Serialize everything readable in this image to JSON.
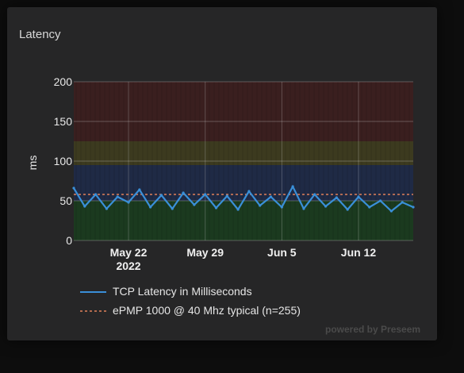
{
  "card": {
    "title": "Latency",
    "watermark_prefix": "powered by",
    "watermark": "Preseem"
  },
  "chart_data": {
    "type": "line",
    "title": "Latency",
    "xlabel": "",
    "ylabel": "ms",
    "ylim": [
      0,
      200
    ],
    "yticks": [
      0,
      50,
      100,
      150,
      200
    ],
    "xlim": [
      "2022-05-17",
      "2022-06-17"
    ],
    "xticks": [
      {
        "date": "2022-05-22",
        "label": "May 22",
        "sublabel": "2022"
      },
      {
        "date": "2022-05-29",
        "label": "May 29",
        "sublabel": ""
      },
      {
        "date": "2022-06-05",
        "label": "Jun 5",
        "sublabel": ""
      },
      {
        "date": "2022-06-12",
        "label": "Jun 12",
        "sublabel": ""
      }
    ],
    "grid": true,
    "legend_placement": "bottom",
    "bands": [
      {
        "from": 0,
        "to": 50,
        "color": "#1b3a1f"
      },
      {
        "from": 50,
        "to": 95,
        "color": "#1f2a45"
      },
      {
        "from": 95,
        "to": 125,
        "color": "#3c3a1f"
      },
      {
        "from": 125,
        "to": 200,
        "color": "#3a1f1f"
      }
    ],
    "series": [
      {
        "name": "TCP Latency in Milliseconds",
        "color": "#3a8fd8",
        "style": "solid",
        "x": [
          "2022-05-17",
          "2022-05-18",
          "2022-05-19",
          "2022-05-20",
          "2022-05-21",
          "2022-05-22",
          "2022-05-23",
          "2022-05-24",
          "2022-05-25",
          "2022-05-26",
          "2022-05-27",
          "2022-05-28",
          "2022-05-29",
          "2022-05-30",
          "2022-05-31",
          "2022-06-01",
          "2022-06-02",
          "2022-06-03",
          "2022-06-04",
          "2022-06-05",
          "2022-06-06",
          "2022-06-07",
          "2022-06-08",
          "2022-06-09",
          "2022-06-10",
          "2022-06-11",
          "2022-06-12",
          "2022-06-13",
          "2022-06-14",
          "2022-06-15",
          "2022-06-16",
          "2022-06-17"
        ],
        "values": [
          66,
          43,
          58,
          40,
          55,
          48,
          64,
          42,
          57,
          40,
          60,
          45,
          58,
          41,
          56,
          39,
          62,
          44,
          55,
          42,
          68,
          40,
          58,
          43,
          54,
          39,
          55,
          42,
          50,
          37,
          48,
          42
        ]
      },
      {
        "name": "ePMP 1000 @ 40 Mhz typical (n=255)",
        "color": "#e0805a",
        "style": "dotted",
        "constant": 58
      }
    ]
  }
}
